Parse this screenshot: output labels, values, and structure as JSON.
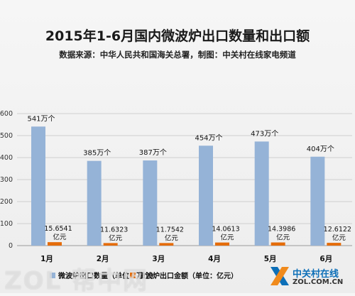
{
  "chart_data": {
    "type": "bar",
    "title": "2015年1-6月国内微波炉出口数量和出口额",
    "subtitle": "数据来源：中华人民共和国海关总署，制图：中关村在线家电频道",
    "categories": [
      "1月",
      "2月",
      "3月",
      "4月",
      "5月",
      "6月"
    ],
    "ylim": [
      0,
      600
    ],
    "yticks": [
      0,
      100,
      200,
      300,
      400,
      500,
      600
    ],
    "grid": true,
    "legend_position": "bottom",
    "series": [
      {
        "name": "微波炉出口数量（单位：万个）",
        "color": "#95b3d7",
        "values": [
          541,
          385,
          387,
          454,
          473,
          404
        ],
        "labels": [
          "541万个",
          "385万个",
          "387万个",
          "454万个",
          "473万个",
          "404万个"
        ]
      },
      {
        "name": "微波炉出口金额（单位：亿元）",
        "color": "#e46c0a",
        "values": [
          15.6541,
          11.6323,
          11.7542,
          14.0613,
          14.3986,
          12.6122
        ],
        "labels": [
          "15.6541",
          "11.6323",
          "11.7542",
          "14.0613",
          "14.3986",
          "12.6122"
        ],
        "unit_label": "亿元"
      }
    ]
  },
  "watermark": "ZOL 帮中网",
  "brand": {
    "name_cn": "中关村在线",
    "name_en": "ZOL.COM.CN",
    "icon": "zol-x-logo-icon"
  }
}
